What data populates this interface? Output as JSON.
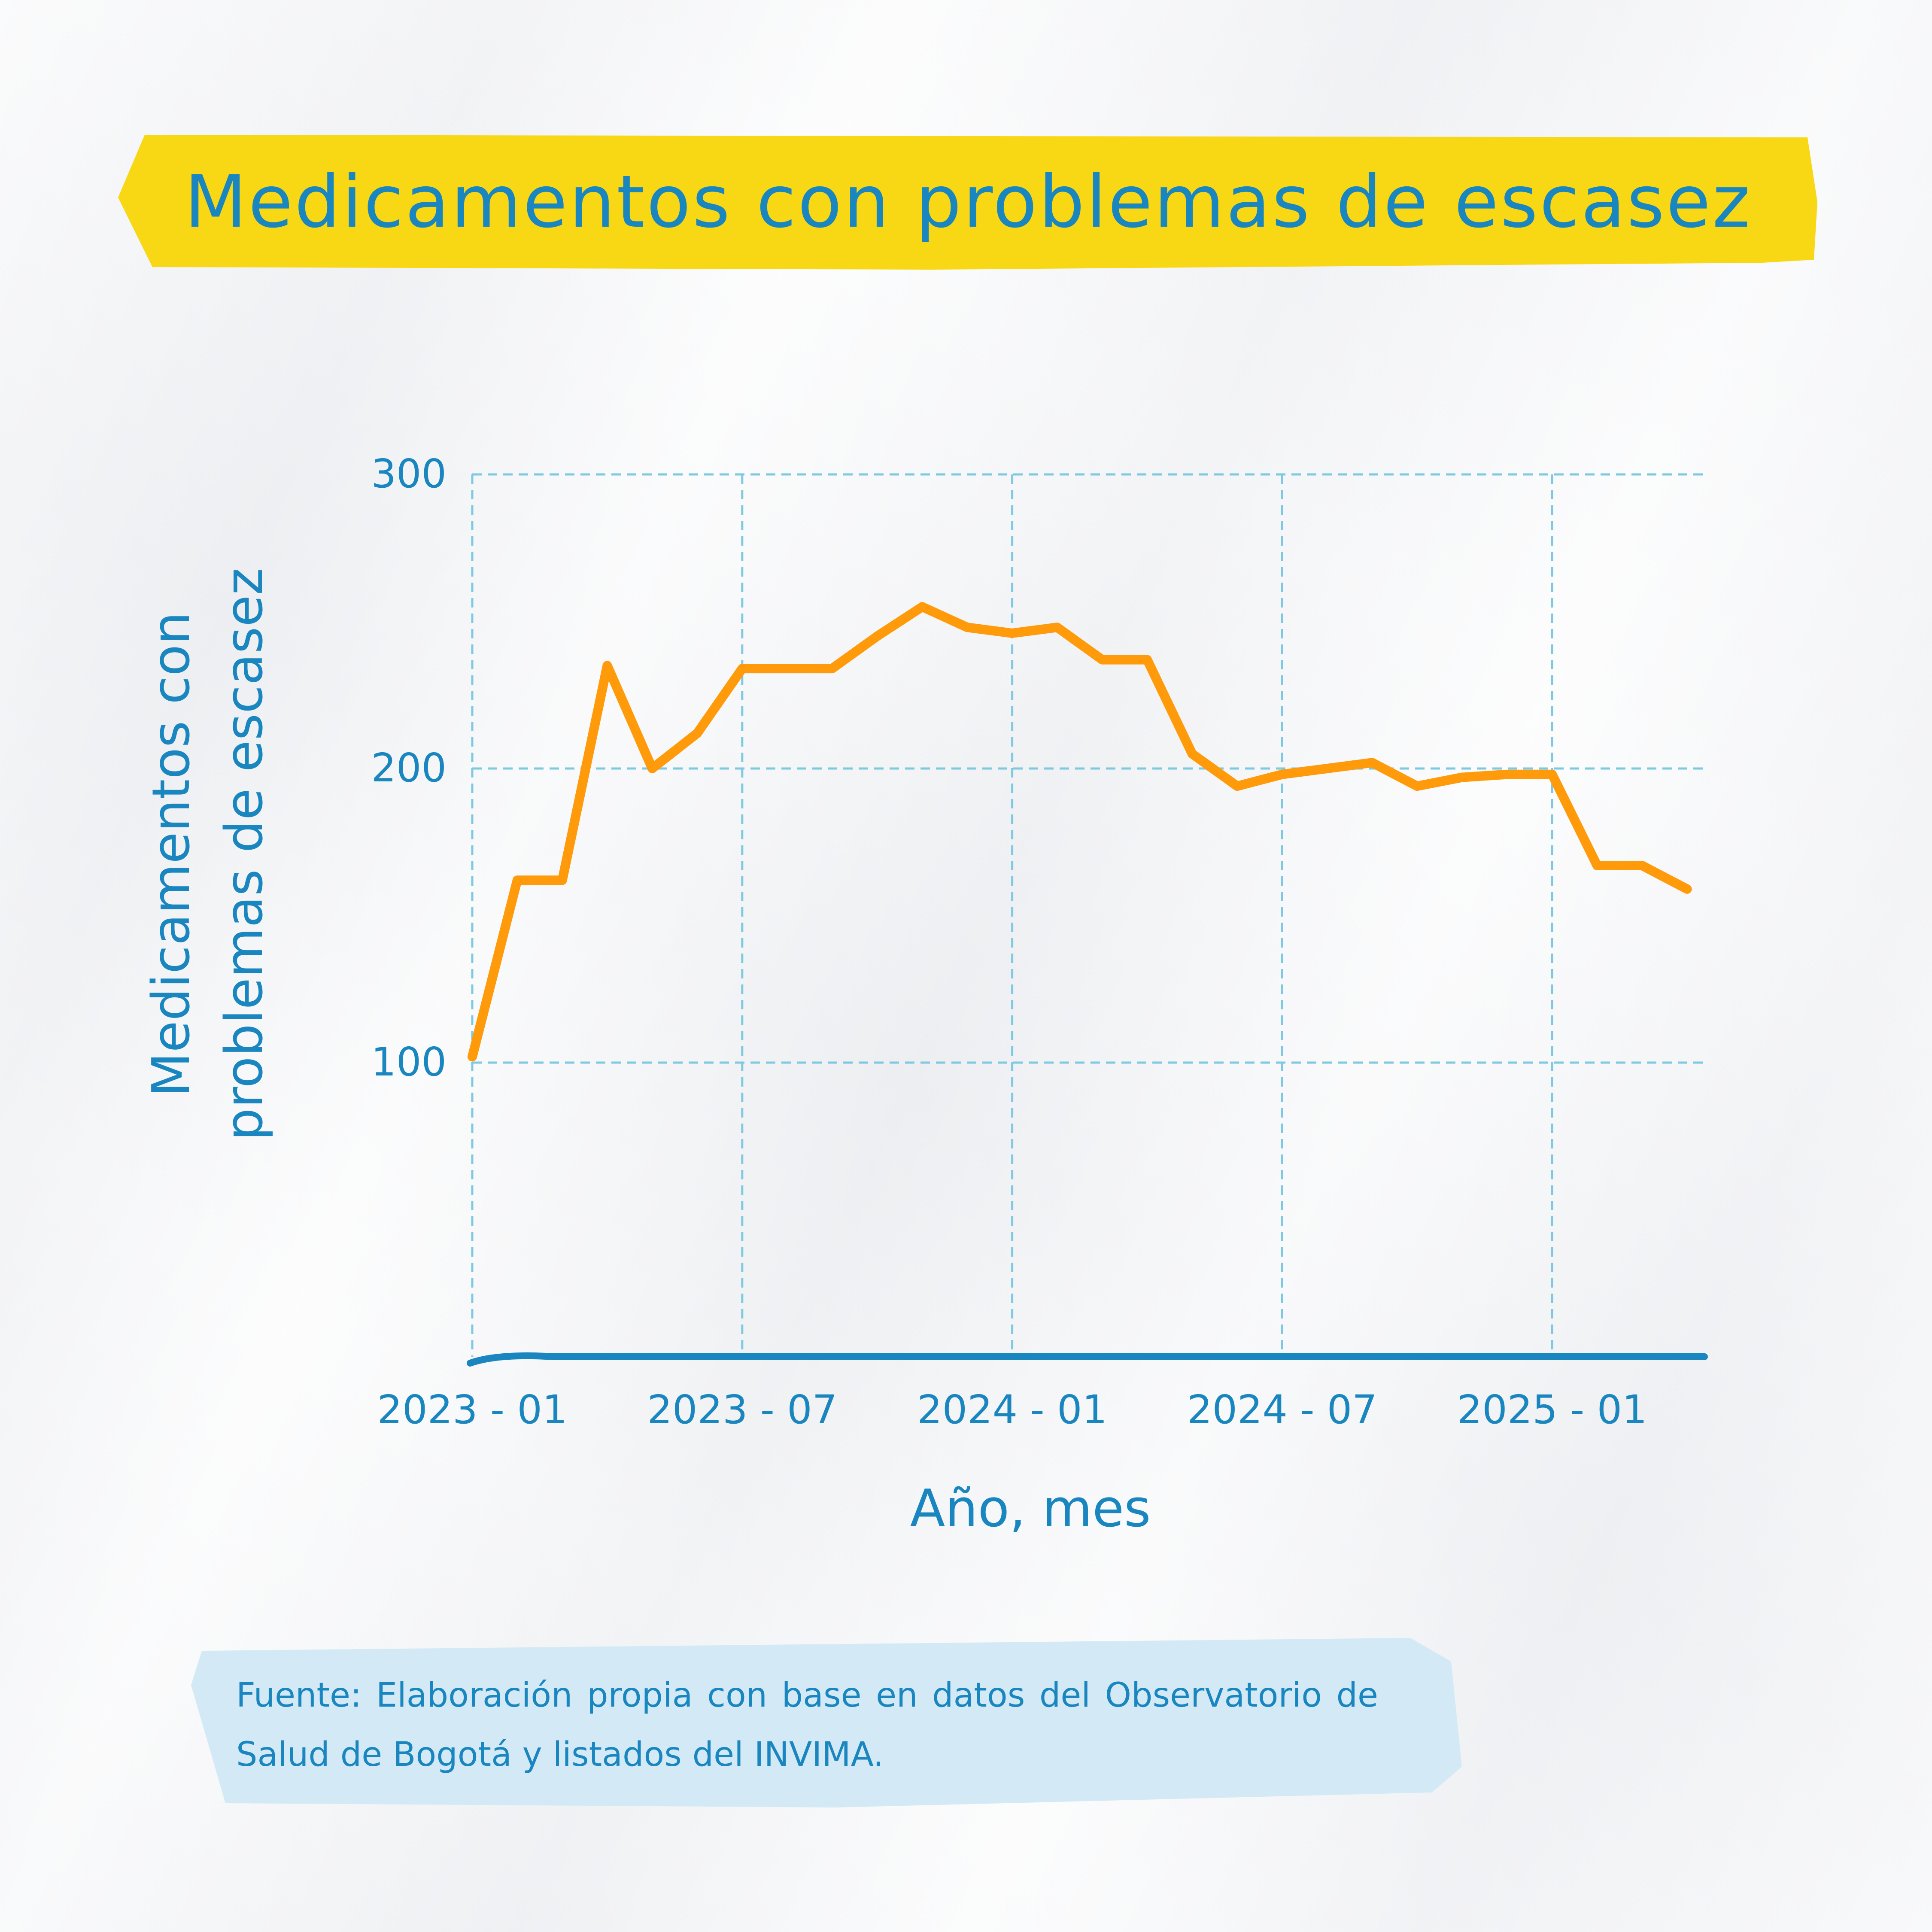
{
  "title": "Medicamentos con problemas de escasez",
  "source": "Fuente: Elaboración propia con base en datos del Observatorio de Salud de Bogotá y listados del INVIMA.",
  "colors": {
    "title_banner": "#f8d714",
    "title_text": "#1a86c0",
    "line": "#ff9a0a",
    "axis": "#1a86c0",
    "grid": "#7ec9e2",
    "source_box": "#d3eaf6",
    "background": "#f2f3f5"
  },
  "chart_data": {
    "type": "line",
    "title": "",
    "xlabel": "Año, mes",
    "ylabel_lines": [
      "Medicamentos con",
      "problemas de escasez"
    ],
    "xticks": [
      {
        "label": "2023 - 01",
        "month_index": 0
      },
      {
        "label": "2023 - 07",
        "month_index": 6
      },
      {
        "label": "2024 - 01",
        "month_index": 12
      },
      {
        "label": "2024 - 07",
        "month_index": 18
      },
      {
        "label": "2025 - 01",
        "month_index": 24
      }
    ],
    "yticks": [
      100,
      200,
      300
    ],
    "ylim": [
      0,
      300
    ],
    "xlim_months": [
      0,
      27.5
    ],
    "grid": true,
    "series": [
      {
        "x": [
          "2023-01",
          "2023-02",
          "2023-03",
          "2023-04",
          "2023-05",
          "2023-06",
          "2023-07",
          "2023-08",
          "2023-09",
          "2023-10",
          "2023-11",
          "2023-12",
          "2024-01",
          "2024-02",
          "2024-03",
          "2024-04",
          "2024-05",
          "2024-06",
          "2024-07",
          "2024-08",
          "2024-09",
          "2024-10",
          "2024-11",
          "2024-12",
          "2025-01",
          "2025-02",
          "2025-03",
          "2025-04"
        ],
        "values": [
          102,
          162,
          162,
          235,
          200,
          212,
          234,
          234,
          234,
          245,
          255,
          248,
          246,
          248,
          237,
          237,
          205,
          194,
          198,
          200,
          202,
          194,
          197,
          198,
          198,
          167,
          167,
          159
        ]
      }
    ]
  }
}
